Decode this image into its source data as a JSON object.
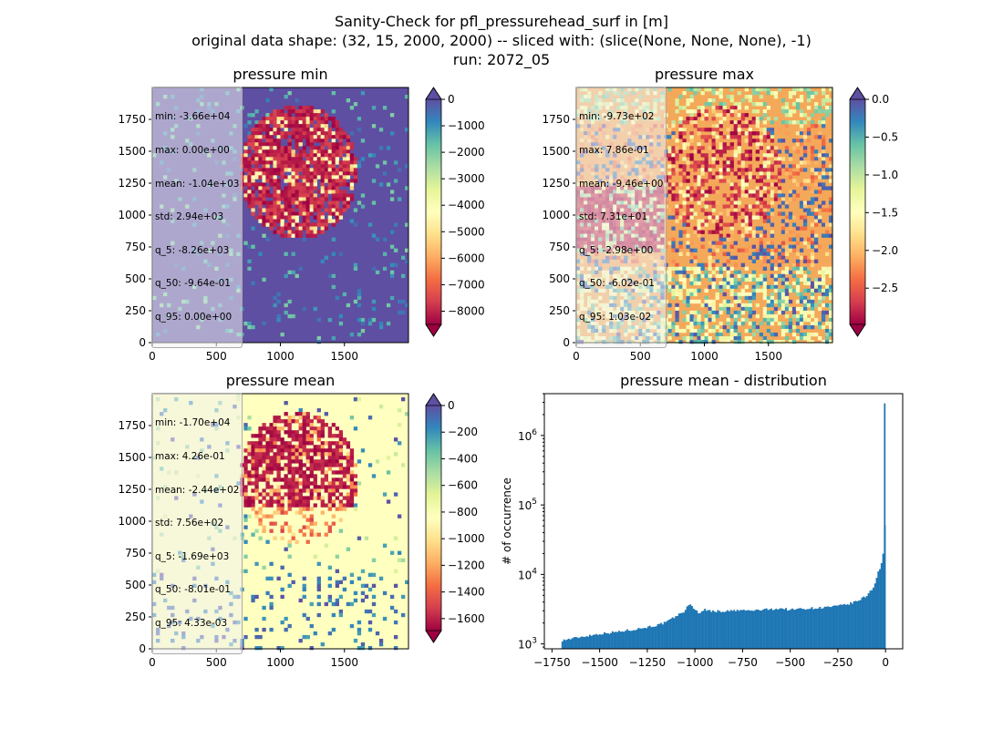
{
  "figure": {
    "title_lines": [
      "Sanity-Check for pfl_pressurehead_surf in [m]",
      "original data shape: (32, 15, 2000, 2000) -- sliced with: (slice(None, None, None), -1)",
      "run: 2072_05"
    ]
  },
  "colormap": "Spectral",
  "chart_data": [
    {
      "type": "heatmap",
      "title": "pressure min",
      "x_range": [
        0,
        2000
      ],
      "y_range": [
        0,
        2000
      ],
      "x_ticks": [
        0,
        500,
        1000,
        1500
      ],
      "y_ticks": [
        0,
        250,
        500,
        750,
        1000,
        1250,
        1500,
        1750
      ],
      "colorbar": {
        "range": [
          -8500,
          0
        ],
        "ticks": [
          0,
          -1000,
          -2000,
          -3000,
          -4000,
          -5000,
          -6000,
          -7000,
          -8000
        ],
        "tick_labels": [
          "0",
          "−1000",
          "−2000",
          "−3000",
          "−4000",
          "−5000",
          "−6000",
          "−7000",
          "−8000"
        ],
        "extend": "both"
      },
      "stats": [
        "min: -3.66e+04",
        "max: 0.00e+00",
        "mean: -1.04e+03",
        "std: 2.94e+03",
        "q_5: -8.26e+03",
        "q_50: -9.64e-01",
        "q_95: 0.00e+00"
      ]
    },
    {
      "type": "heatmap",
      "title": "pressure max",
      "x_range": [
        0,
        2000
      ],
      "y_range": [
        0,
        2000
      ],
      "x_ticks": [
        0,
        500,
        1000,
        1500
      ],
      "y_ticks": [
        0,
        250,
        500,
        750,
        1000,
        1250,
        1500,
        1750
      ],
      "colorbar": {
        "range": [
          -2.98,
          0.0
        ],
        "ticks": [
          0.0,
          -0.5,
          -1.0,
          -1.5,
          -2.0,
          -2.5
        ],
        "tick_labels": [
          "0.0",
          "−0.5",
          "−1.0",
          "−1.5",
          "−2.0",
          "−2.5"
        ],
        "extend": "both"
      },
      "stats": [
        "min: -9.73e+02",
        "max: 7.86e-01",
        "mean: -9.46e+00",
        "std: 7.31e+01",
        "q_5: -2.98e+00",
        "q_50: -6.02e-01",
        "q_95: 1.03e-02"
      ]
    },
    {
      "type": "heatmap",
      "title": "pressure mean",
      "x_range": [
        0,
        2000
      ],
      "y_range": [
        0,
        2000
      ],
      "x_ticks": [
        0,
        500,
        1000,
        1500
      ],
      "y_ticks": [
        0,
        250,
        500,
        750,
        1000,
        1250,
        1500,
        1750
      ],
      "colorbar": {
        "range": [
          -1690,
          0
        ],
        "ticks": [
          0,
          -200,
          -400,
          -600,
          -800,
          -1000,
          -1200,
          -1400,
          -1600
        ],
        "tick_labels": [
          "0",
          "−200",
          "−400",
          "−600",
          "−800",
          "−1000",
          "−1200",
          "−1400",
          "−1600"
        ],
        "extend": "both"
      },
      "stats": [
        "min: -1.70e+04",
        "max: 4.26e-01",
        "mean: -2.44e+02",
        "std: 7.56e+02",
        "q_5: -1.69e+03",
        "q_50: -8.01e-01",
        "q_95: 4.33e-03"
      ]
    },
    {
      "type": "bar",
      "title": "pressure mean - distribution",
      "ylabel": "# of occurrence",
      "xlabel": "",
      "x_range": [
        -1790,
        90
      ],
      "y_log": true,
      "y_range": [
        850,
        4000000
      ],
      "x_ticks": [
        -1750,
        -1500,
        -1250,
        -1000,
        -750,
        -500,
        -250,
        0
      ],
      "x_tick_labels": [
        "−1750",
        "−1500",
        "−1250",
        "−1000",
        "−750",
        "−500",
        "−250",
        "0"
      ],
      "y_ticks": [
        1000,
        10000,
        100000,
        1000000
      ],
      "y_tick_labels": [
        {
          "base": "10",
          "exp": "3"
        },
        {
          "base": "10",
          "exp": "4"
        },
        {
          "base": "10",
          "exp": "5"
        },
        {
          "base": "10",
          "exp": "6"
        }
      ],
      "bar_color": "#1f77b4",
      "bin_width": 8.5,
      "bins": [
        [
          -1700,
          1120
        ],
        [
          -1600,
          1260
        ],
        [
          -1500,
          1400
        ],
        [
          -1400,
          1500
        ],
        [
          -1300,
          1650
        ],
        [
          -1250,
          1750
        ],
        [
          -1200,
          1850
        ],
        [
          -1150,
          2050
        ],
        [
          -1100,
          2500
        ],
        [
          -1060,
          2900
        ],
        [
          -1040,
          3400
        ],
        [
          -1020,
          3700
        ],
        [
          -1000,
          3100
        ],
        [
          -980,
          2800
        ],
        [
          -950,
          3100
        ],
        [
          -900,
          2950
        ],
        [
          -850,
          2950
        ],
        [
          -800,
          3000
        ],
        [
          -750,
          3050
        ],
        [
          -700,
          3000
        ],
        [
          -650,
          3100
        ],
        [
          -600,
          3150
        ],
        [
          -550,
          3250
        ],
        [
          -500,
          3100
        ],
        [
          -450,
          3200
        ],
        [
          -400,
          3250
        ],
        [
          -350,
          3300
        ],
        [
          -300,
          3400
        ],
        [
          -250,
          3500
        ],
        [
          -200,
          3700
        ],
        [
          -150,
          4100
        ],
        [
          -100,
          4900
        ],
        [
          -60,
          6800
        ],
        [
          -40,
          10500
        ],
        [
          -25,
          13000
        ],
        [
          -15,
          18000
        ],
        [
          -10,
          22000
        ],
        [
          -5,
          24000
        ],
        [
          0,
          2900000
        ]
      ]
    }
  ]
}
